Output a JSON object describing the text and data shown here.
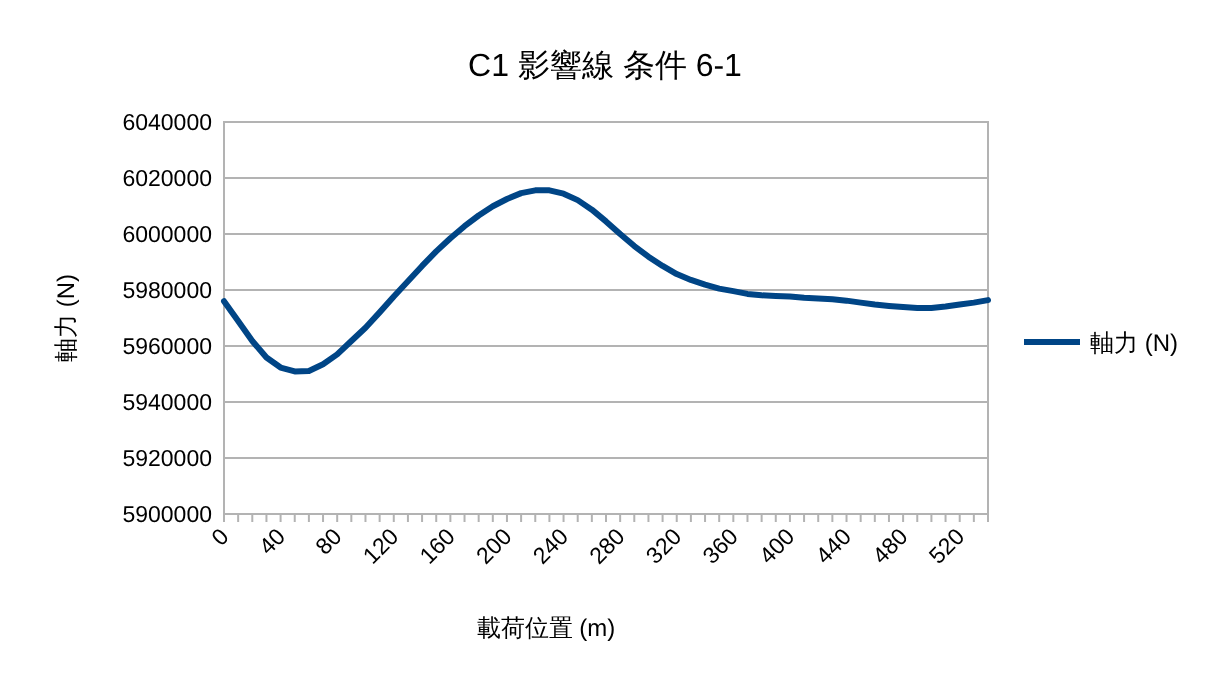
{
  "chart_data": {
    "type": "line",
    "title": "C1 影響線 条件 6-1",
    "xlabel": "載荷位置 (m)",
    "ylabel": "軸力 (N)",
    "categories": [
      "0",
      null,
      null,
      null,
      "40",
      null,
      null,
      null,
      "80",
      null,
      null,
      null,
      "120",
      null,
      null,
      null,
      "160",
      null,
      null,
      null,
      "200",
      null,
      null,
      null,
      "240",
      null,
      null,
      null,
      "280",
      null,
      null,
      null,
      "320",
      null,
      null,
      null,
      "360",
      null,
      null,
      null,
      "400",
      null,
      null,
      null,
      "440",
      null,
      null,
      null,
      "480",
      null,
      null,
      null,
      "520",
      null,
      null
    ],
    "series": [
      {
        "name": "軸力 (N)",
        "color": "#004586",
        "values": [
          5976000,
          5968900,
          5961800,
          5955900,
          5952300,
          5950900,
          5951100,
          5953500,
          5957000,
          5961800,
          5966500,
          5972000,
          5977700,
          5983100,
          5988600,
          5993800,
          5998500,
          6002800,
          6006600,
          6009900,
          6012500,
          6014600,
          6015600,
          6015600,
          6014400,
          6012100,
          6008700,
          6004500,
          6000000,
          5995700,
          5991900,
          5988600,
          5985700,
          5983600,
          5981900,
          5980500,
          5979600,
          5978600,
          5978100,
          5977900,
          5977700,
          5977200,
          5977000,
          5976700,
          5976200,
          5975500,
          5974800,
          5974300,
          5973900,
          5973600,
          5973600,
          5974100,
          5974800,
          5975500,
          5976400
        ]
      }
    ],
    "ylim": [
      5900000,
      6040000
    ],
    "yticks": [
      5900000,
      5920000,
      5940000,
      5960000,
      5980000,
      6000000,
      6020000,
      6040000
    ],
    "grid": "y",
    "legend": "right",
    "marker": "none",
    "line_style": "solid"
  }
}
